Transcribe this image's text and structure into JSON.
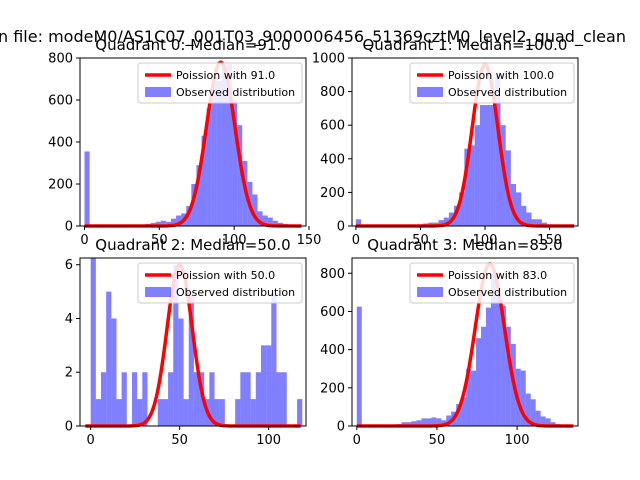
{
  "figure": {
    "suptitle": "n file: modeM0/AS1C07_001T03_9000006456_51369cztM0_level2_quad_clean"
  },
  "chart_data": [
    {
      "type": "bar",
      "title": "Quadrant 0: Median=91.0",
      "xlim": [
        -3,
        148
      ],
      "ylim": [
        0,
        800
      ],
      "xticks": [
        0,
        50,
        100,
        150
      ],
      "yticks": [
        0,
        200,
        400,
        600,
        800
      ],
      "legend": [
        "Poission with 91.0",
        "Observed distribution"
      ],
      "legend_position": "upper-right",
      "poisson_mean": 91,
      "poisson_peak": 780,
      "bin_width": 3.4,
      "hist_x": [
        0,
        3.4,
        6.8,
        10.2,
        13.6,
        17,
        20.4,
        23.8,
        27.2,
        30.6,
        34,
        37.4,
        40.8,
        44.2,
        47.6,
        51,
        54.4,
        57.8,
        61.2,
        64.6,
        68,
        71.4,
        74.8,
        78.2,
        81.6,
        85,
        88.4,
        91.8,
        95.2,
        98.6,
        102,
        105.4,
        108.8,
        112.2,
        115.6,
        119,
        122.4,
        125.8,
        129.2,
        132.6,
        136,
        139.4
      ],
      "hist_y": [
        355,
        0,
        0,
        0,
        0,
        0,
        0,
        0,
        2,
        0,
        3,
        5,
        10,
        15,
        20,
        25,
        20,
        35,
        50,
        60,
        95,
        200,
        290,
        430,
        560,
        720,
        690,
        760,
        770,
        600,
        480,
        310,
        210,
        150,
        70,
        50,
        40,
        25,
        15,
        10,
        5,
        5
      ]
    },
    {
      "type": "bar",
      "title": "Quadrant 1: Median=100.0",
      "xlim": [
        -3,
        172
      ],
      "ylim": [
        0,
        1000
      ],
      "xticks": [
        0,
        50,
        100,
        150
      ],
      "yticks": [
        0,
        200,
        400,
        600,
        800,
        1000
      ],
      "legend": [
        "Poission with 100.0",
        "Observed distribution"
      ],
      "legend_position": "upper-right",
      "poisson_mean": 100,
      "poisson_peak": 960,
      "bin_width": 4,
      "hist_x": [
        0,
        4,
        8,
        12,
        16,
        20,
        24,
        28,
        32,
        36,
        40,
        44,
        48,
        52,
        56,
        60,
        64,
        68,
        72,
        76,
        80,
        84,
        88,
        92,
        96,
        100,
        104,
        108,
        112,
        116,
        120,
        124,
        128,
        132,
        136,
        140,
        144,
        148,
        152,
        156,
        160,
        164
      ],
      "hist_y": [
        40,
        0,
        0,
        0,
        0,
        0,
        0,
        0,
        0,
        2,
        5,
        5,
        10,
        15,
        20,
        20,
        35,
        50,
        80,
        120,
        200,
        460,
        480,
        600,
        720,
        720,
        720,
        900,
        600,
        450,
        250,
        200,
        120,
        80,
        40,
        40,
        20,
        10,
        5,
        5,
        0,
        0
      ]
    },
    {
      "type": "bar",
      "title": "Quadrant 2: Median=50.0",
      "xlim": [
        -6,
        121
      ],
      "ylim": [
        0,
        6.25
      ],
      "xticks": [
        0,
        50,
        100
      ],
      "yticks": [
        0,
        2,
        4,
        6
      ],
      "legend": [
        "Poission with 50.0",
        "Observed distribution"
      ],
      "legend_position": "upper-right",
      "poisson_mean": 50,
      "poisson_peak": 6.0,
      "bin_width": 2.9,
      "hist_x": [
        0,
        2.9,
        5.8,
        8.7,
        11.6,
        14.5,
        17.4,
        20.3,
        23.2,
        26.1,
        29,
        31.9,
        34.8,
        37.7,
        40.6,
        43.5,
        46.4,
        49.3,
        52.2,
        55.1,
        58,
        60.9,
        63.8,
        66.7,
        69.6,
        72.5,
        75.4,
        78.3,
        81.2,
        84.1,
        87,
        89.9,
        92.8,
        95.7,
        98.6,
        101.5,
        104.4,
        107.3,
        110.2,
        113.1,
        116
      ],
      "hist_y": [
        6.25,
        1,
        2,
        5,
        4,
        1,
        2,
        0,
        2,
        1,
        2,
        0,
        0,
        1,
        1,
        2,
        6,
        4,
        1,
        5,
        2,
        2,
        1,
        2,
        1,
        1,
        0,
        0,
        1,
        2,
        2,
        1,
        2,
        3,
        3,
        5,
        2,
        2,
        0,
        0,
        1
      ]
    },
    {
      "type": "bar",
      "title": "Quadrant 3: Median=83.0",
      "xlim": [
        -3,
        138
      ],
      "ylim": [
        0,
        880
      ],
      "xticks": [
        0,
        50,
        100
      ],
      "yticks": [
        0,
        200,
        400,
        600,
        800
      ],
      "legend": [
        "Poission with 83.0",
        "Observed distribution"
      ],
      "legend_position": "upper-right",
      "poisson_mean": 83,
      "poisson_peak": 850,
      "bin_width": 3.1,
      "hist_x": [
        0,
        3.1,
        6.2,
        9.3,
        12.4,
        15.5,
        18.6,
        21.7,
        24.8,
        27.9,
        31,
        34.1,
        37.2,
        40.3,
        43.4,
        46.5,
        49.6,
        52.7,
        55.8,
        58.9,
        62,
        65.1,
        68.2,
        71.3,
        74.4,
        77.5,
        80.6,
        83.7,
        86.8,
        89.9,
        93,
        96.1,
        99.2,
        102.3,
        105.4,
        108.5,
        111.6,
        114.7,
        117.8,
        120.9,
        124,
        127.1
      ],
      "hist_y": [
        625,
        0,
        0,
        0,
        0,
        0,
        0,
        0,
        10,
        20,
        20,
        25,
        30,
        40,
        40,
        45,
        40,
        30,
        55,
        75,
        115,
        150,
        300,
        290,
        460,
        520,
        620,
        800,
        700,
        630,
        520,
        430,
        300,
        290,
        170,
        140,
        80,
        50,
        40,
        20,
        10,
        5
      ]
    }
  ]
}
